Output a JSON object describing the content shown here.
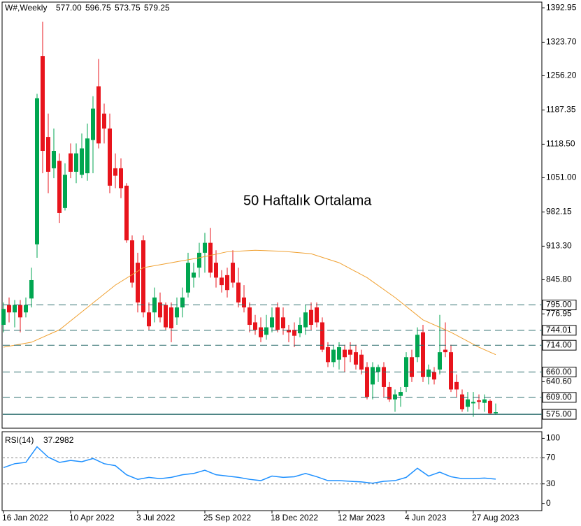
{
  "chart_data": [
    {
      "type": "candlestick",
      "title": "W#,Weekly",
      "ohlc_labels": [
        "577.00",
        "596.75",
        "573.75",
        "579.25"
      ],
      "categories": [
        "16 Jan 2022",
        null,
        null,
        null,
        null,
        null,
        null,
        null,
        null,
        null,
        null,
        null,
        "10 Apr 2022",
        null,
        null,
        null,
        null,
        null,
        null,
        null,
        null,
        null,
        null,
        null,
        "3 Jul 2022",
        null,
        null,
        null,
        null,
        null,
        null,
        null,
        null,
        null,
        null,
        null,
        "25 Sep 2022",
        null,
        null,
        null,
        null,
        null,
        null,
        null,
        null,
        null,
        null,
        null,
        "18 Dec 2022",
        null,
        null,
        null,
        null,
        null,
        null,
        null,
        null,
        null,
        null,
        null,
        "12 Mar 2023",
        null,
        null,
        null,
        null,
        null,
        null,
        null,
        null,
        null,
        null,
        null,
        "4 Jun 2023",
        null,
        null,
        null,
        null,
        null,
        null,
        null,
        null,
        null,
        null,
        null,
        "27 Aug 2023",
        null,
        null,
        null,
        null
      ],
      "open": [
        755,
        795,
        780,
        795,
        780,
        808,
        917,
        1296,
        1133,
        1070,
        1085,
        990,
        1100,
        1063,
        1057,
        1060,
        1127,
        1235,
        1180,
        1150,
        1070,
        1070,
        1035,
        925,
        880,
        925,
        780,
        780,
        800,
        795,
        790,
        770,
        790,
        820,
        850,
        870,
        900,
        920,
        880,
        850,
        855,
        880,
        840,
        810,
        790,
        760,
        750,
        735,
        750,
        790,
        770,
        745,
        745,
        738,
        750,
        785,
        790,
        760,
        710,
        680,
        685,
        705,
        705,
        700,
        695,
        670,
        635,
        660,
        670,
        630,
        605,
        612,
        630,
        690,
        690,
        740,
        650,
        660,
        665,
        705,
        700,
        640,
        615,
        590,
        597,
        603,
        598,
        602,
        577
      ],
      "high": [
        800,
        810,
        805,
        805,
        810,
        870,
        1220,
        1365,
        1180,
        1150,
        1100,
        1080,
        1120,
        1120,
        1140,
        1160,
        1215,
        1290,
        1200,
        1180,
        1100,
        1090,
        1040,
        935,
        900,
        935,
        800,
        830,
        820,
        800,
        800,
        810,
        830,
        900,
        880,
        920,
        940,
        950,
        905,
        865,
        870,
        905,
        870,
        835,
        800,
        775,
        770,
        775,
        790,
        800,
        790,
        755,
        760,
        770,
        795,
        800,
        800,
        770,
        720,
        715,
        720,
        715,
        720,
        715,
        705,
        680,
        680,
        675,
        680,
        640,
        625,
        630,
        700,
        705,
        750,
        755,
        675,
        670,
        775,
        760,
        715,
        655,
        625,
        620,
        620,
        615,
        615,
        605,
        596.75
      ],
      "low": [
        740,
        760,
        750,
        740,
        770,
        790,
        890,
        1060,
        1020,
        1050,
        960,
        985,
        1050,
        1040,
        1050,
        1045,
        1060,
        1110,
        1120,
        1020,
        1030,
        1010,
        920,
        830,
        780,
        770,
        745,
        760,
        760,
        745,
        720,
        755,
        770,
        810,
        830,
        850,
        860,
        850,
        830,
        820,
        810,
        830,
        790,
        780,
        740,
        735,
        720,
        725,
        740,
        740,
        735,
        720,
        710,
        730,
        735,
        745,
        750,
        700,
        670,
        670,
        665,
        660,
        680,
        665,
        655,
        605,
        605,
        640,
        610,
        600,
        580,
        590,
        620,
        640,
        680,
        640,
        635,
        635,
        655,
        690,
        620,
        610,
        580,
        580,
        570,
        585,
        580,
        575,
        573.75
      ],
      "close": [
        787,
        780,
        795,
        770,
        795,
        845,
        1211,
        1105,
        1063,
        1105,
        980,
        1057,
        1063,
        1100,
        1110,
        1130,
        1190,
        1120,
        1150,
        1035,
        1055,
        1030,
        925,
        840,
        800,
        780,
        752,
        810,
        770,
        750,
        748,
        790,
        810,
        880,
        860,
        900,
        920,
        860,
        850,
        835,
        825,
        840,
        800,
        790,
        755,
        745,
        730,
        750,
        770,
        745,
        748,
        740,
        733,
        755,
        780,
        755,
        760,
        705,
        680,
        705,
        710,
        690,
        695,
        675,
        665,
        610,
        670,
        670,
        630,
        605,
        615,
        620,
        690,
        650,
        735,
        650,
        665,
        645,
        700,
        700,
        625,
        625,
        585,
        605,
        600,
        600,
        605,
        577,
        579.25
      ],
      "up_color": "#00a650",
      "down_color": "#e8141c",
      "ma": {
        "name": "50 Haftalık Ortalama",
        "color": "#f0a030",
        "x": [
          0,
          5,
          10,
          15,
          20,
          25,
          30,
          35,
          40,
          45,
          50,
          55,
          60,
          65,
          70,
          75,
          80,
          85,
          88
        ],
        "values": [
          710,
          720,
          745,
          790,
          835,
          870,
          880,
          890,
          902,
          905,
          903,
          898,
          880,
          850,
          810,
          765,
          740,
          710,
          695
        ]
      },
      "levels": [
        {
          "value": 795,
          "label": "795.00"
        },
        {
          "value": 744.01,
          "label": "744.01"
        },
        {
          "value": 714,
          "label": "714.00"
        },
        {
          "value": 660,
          "label": "660.00"
        },
        {
          "value": 609,
          "label": "609.00"
        },
        {
          "value": 575,
          "label": "575.00"
        }
      ],
      "level_color": "#2f6f6f",
      "ylim": [
        547,
        1403
      ],
      "yticks": [
        {
          "value": 1392.95,
          "label": "1392.95"
        },
        {
          "value": 1323.7,
          "label": "1323.70"
        },
        {
          "value": 1256.2,
          "label": "1256.20"
        },
        {
          "value": 1187.35,
          "label": "1187.35"
        },
        {
          "value": 1118.5,
          "label": "1118.50"
        },
        {
          "value": 1051,
          "label": "1051.00"
        },
        {
          "value": 982.15,
          "label": "982.15"
        },
        {
          "value": 913.3,
          "label": "913.30"
        },
        {
          "value": 845.8,
          "label": "845.80"
        },
        {
          "value": 776.95,
          "label": "776.95"
        },
        {
          "value": 640.6,
          "label": "640.60"
        }
      ]
    },
    {
      "type": "line",
      "title": "RSI(14)",
      "value_label": "37.2982",
      "x": [
        0,
        2,
        4,
        6,
        8,
        10,
        12,
        14,
        16,
        18,
        20,
        22,
        24,
        26,
        28,
        30,
        32,
        34,
        36,
        38,
        40,
        42,
        44,
        46,
        48,
        50,
        52,
        54,
        56,
        58,
        60,
        62,
        64,
        66,
        68,
        70,
        72,
        74,
        76,
        78,
        80,
        82,
        84,
        86,
        88
      ],
      "values": [
        55,
        61,
        63,
        87,
        71,
        63,
        66,
        64,
        69,
        61,
        58,
        44,
        37,
        40,
        38,
        40,
        44,
        46,
        51,
        44,
        42,
        40,
        37,
        35,
        42,
        40,
        41,
        46,
        41,
        35,
        35,
        34,
        33,
        31,
        34,
        35,
        40,
        54,
        42,
        48,
        41,
        38,
        38,
        39,
        37.2982
      ],
      "color": "#1e90ff",
      "ylim": [
        -10,
        108
      ],
      "yticks": [
        100,
        70,
        30,
        0
      ],
      "levels": [
        70,
        30
      ]
    }
  ]
}
